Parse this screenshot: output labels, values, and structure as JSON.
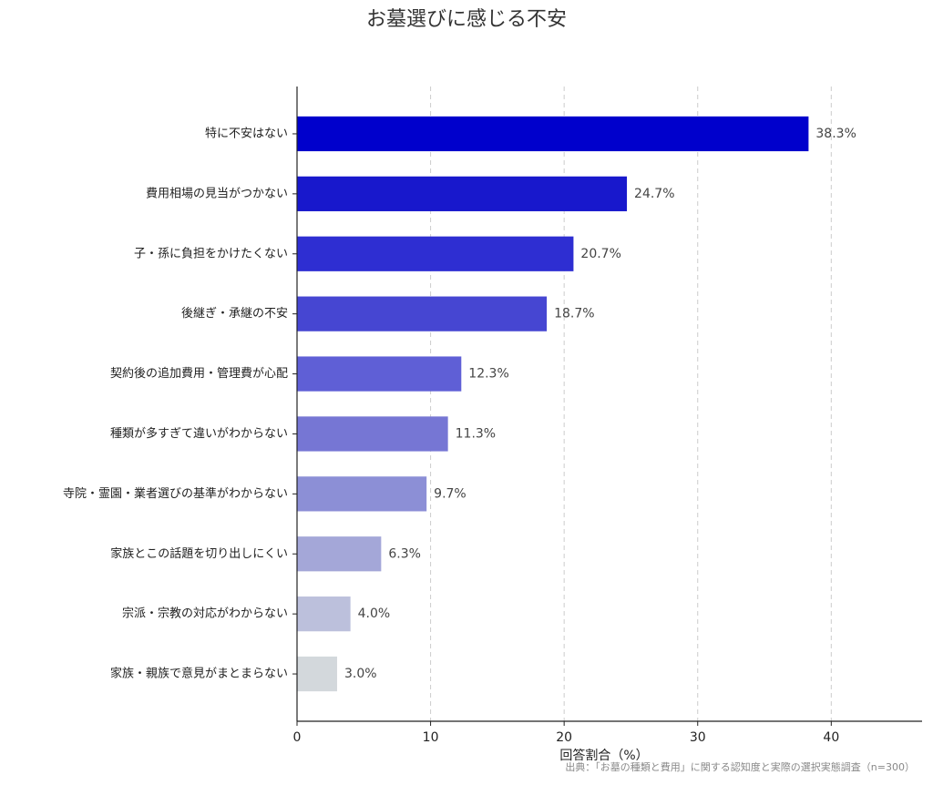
{
  "chart_data": {
    "type": "hbar",
    "title": "お墓選びに感じる不安",
    "categories": [
      "特に不安はない",
      "費用相場の見当がつかない",
      "子・孫に負担をかけたくない",
      "後継ぎ・承継の不安",
      "契約後の追加費用・管理費が心配",
      "種類が多すぎて違いがわからない",
      "寺院・霊園・業者選びの基準がわからない",
      "家族とこの話題を切り出しにくい",
      "宗派・宗教の対応がわからない",
      "家族・親族で意見がまとまらない"
    ],
    "values": [
      38.3,
      24.7,
      20.7,
      18.7,
      12.3,
      11.3,
      9.7,
      6.3,
      4.0,
      3.0
    ],
    "value_labels": [
      "38.3%",
      "24.7%",
      "20.7%",
      "18.7%",
      "12.3%",
      "11.3%",
      "9.7%",
      "6.3%",
      "4.0%",
      "3.0%"
    ],
    "colors": [
      "#0000cc",
      "#1818cc",
      "#2e2ed2",
      "#4646d2",
      "#5f5fd6",
      "#7676d4",
      "#8c8fd6",
      "#a4a7d8",
      "#bcc0dc",
      "#d3d8dc"
    ],
    "xlabel": "回答割合（%）",
    "source": "出典：「お墓の種類と費用」に関する認知度と実際の選択実態調査（n=300）",
    "xlim": [
      0,
      46.8
    ],
    "xticks": [
      0,
      10,
      20,
      30,
      40
    ],
    "grid": true
  }
}
